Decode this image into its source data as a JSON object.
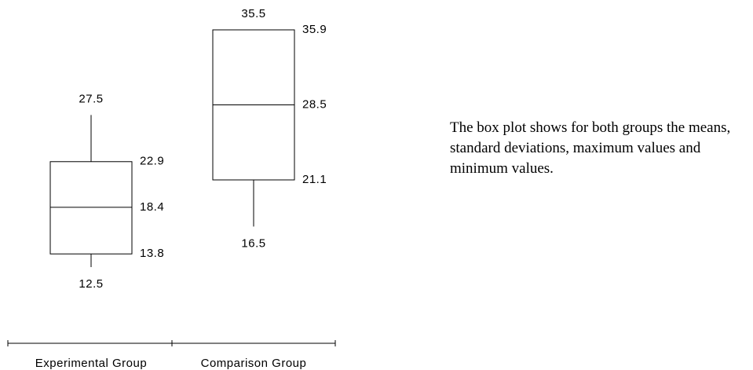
{
  "chart_data": {
    "type": "box",
    "categories": [
      "Experimental Group",
      "Comparison Group"
    ],
    "values": [
      {
        "max": 27.5,
        "upper": 22.9,
        "mean": 18.4,
        "lower": 13.8,
        "min": 12.5
      },
      {
        "max": 35.5,
        "upper": 35.9,
        "mean": 28.5,
        "lower": 21.1,
        "min": 16.5
      }
    ],
    "color": "#000000"
  },
  "note": "The box plot shows for both groups the means, standard deviations, maximum values and minimum values."
}
